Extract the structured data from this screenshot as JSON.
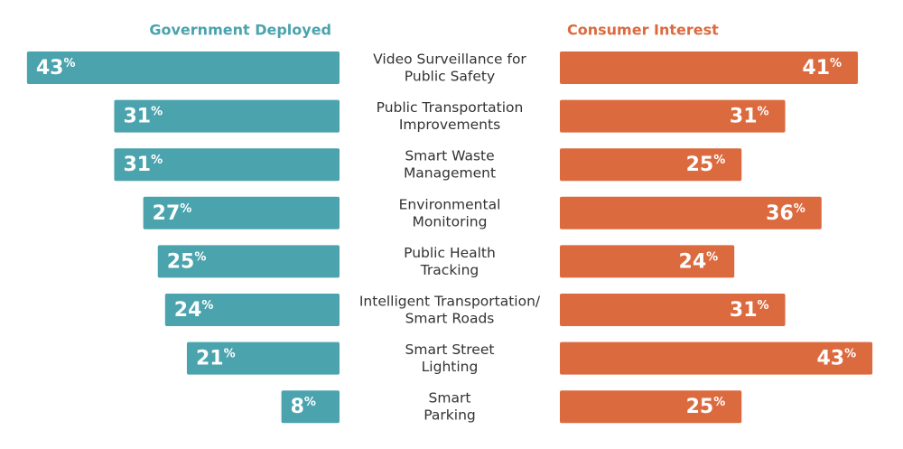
{
  "chart_data": {
    "type": "butterfly",
    "categories": [
      "Video Surveillance for\nPublic Safety",
      "Public Transportation\nImprovements",
      "Smart Waste\nManagement",
      "Environmental\nMonitoring",
      "Public Health\nTracking",
      "Intelligent Transportation/\nSmart Roads",
      "Smart Street\nLighting",
      "Smart\nParking"
    ],
    "series": [
      {
        "name": "Government Deployed",
        "color": "#4aa3ad",
        "values": [
          43,
          31,
          31,
          27,
          25,
          24,
          21,
          8
        ],
        "value_labels": [
          "43%",
          "31%",
          "31%",
          "27%",
          "25%",
          "24%",
          "21%",
          "8%"
        ]
      },
      {
        "name": "Consumer Interest",
        "color": "#dc6a3f",
        "values": [
          41,
          31,
          25,
          36,
          24,
          31,
          43,
          25
        ],
        "value_labels": [
          "41%",
          "31%",
          "25%",
          "36%",
          "24%",
          "31%",
          "43%",
          "25%"
        ]
      }
    ]
  }
}
